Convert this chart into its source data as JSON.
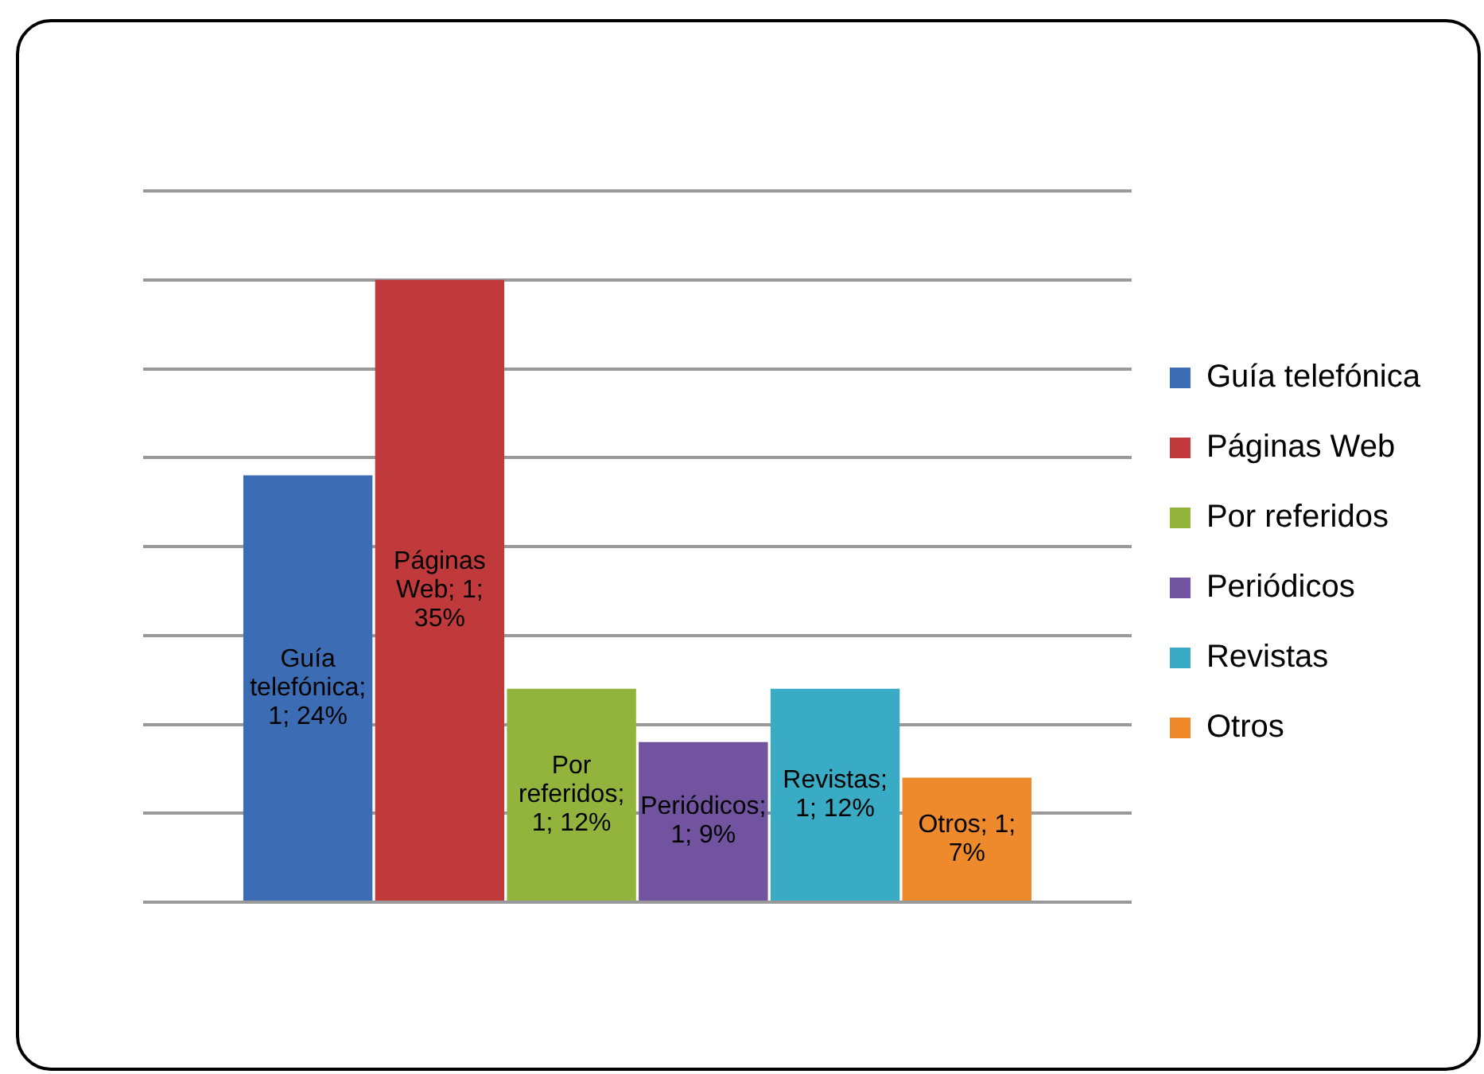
{
  "chart_data": {
    "type": "bar",
    "categories": [
      null
    ],
    "series": [
      {
        "name": "Guía telefónica",
        "color": "#3c6db4",
        "values": [
          24
        ],
        "value_labels": [
          "Guía telefónica; 1; 24%"
        ]
      },
      {
        "name": "Páginas Web",
        "color": "#c0393b",
        "values": [
          35
        ],
        "value_labels": [
          "Páginas Web; 1; 35%"
        ]
      },
      {
        "name": "Por referidos",
        "color": "#92b43c",
        "values": [
          12
        ],
        "value_labels": [
          "Por referidos; 1; 12%"
        ]
      },
      {
        "name": "Periódicos",
        "color": "#7153a0",
        "values": [
          9
        ],
        "value_labels": [
          "Periódicos; 1; 9%"
        ]
      },
      {
        "name": "Revistas",
        "color": "#3aabc4",
        "values": [
          12
        ],
        "value_labels": [
          "Revistas; 1; 12%"
        ]
      },
      {
        "name": "Otros",
        "color": "#ef8a2c",
        "values": [
          7
        ],
        "value_labels": [
          "Otros; 1; 7%"
        ]
      }
    ],
    "ylim": [
      0,
      40
    ],
    "yticks": [
      {
        "value": 0,
        "label": null
      },
      {
        "value": 5,
        "label": null
      },
      {
        "value": 10,
        "label": null
      },
      {
        "value": 15,
        "label": null
      },
      {
        "value": 20,
        "label": null
      },
      {
        "value": 25,
        "label": null
      },
      {
        "value": 30,
        "label": null
      },
      {
        "value": 35,
        "label": null
      },
      {
        "value": 40,
        "label": null
      }
    ],
    "grid": "y",
    "legend": "right",
    "tick_labels": false
  }
}
